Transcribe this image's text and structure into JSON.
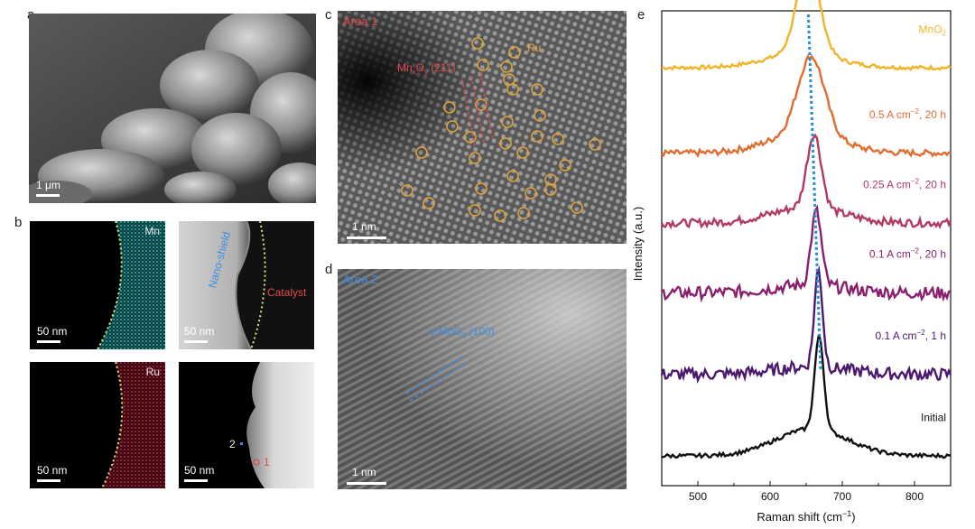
{
  "panel_labels": {
    "a": "a",
    "b": "b",
    "c": "c",
    "d": "d",
    "e": "e"
  },
  "panel_a": {
    "scale_label": "1 μm"
  },
  "panel_b": {
    "mn_label": "Mn",
    "ru_label": "Ru",
    "nano_shield_label": "Nano-shield",
    "catalyst_label": "Catalyst",
    "scale_label": "50 nm",
    "point_1": "1",
    "point_2": "2",
    "colors": {
      "mn": "#1fb7b4",
      "ru": "#d21f3c",
      "boundary": "#e8e07a"
    }
  },
  "panel_c": {
    "area_label": "Area 1",
    "plane_label_main": "Mn",
    "plane_sub_1": "x",
    "plane_label_mid": "O",
    "plane_sub_2": "y",
    "plane_label_end": " (211)",
    "ru_label": "Ru",
    "scale_label": "1 nm",
    "colors": {
      "label": "#e34a4a",
      "ru_marker": "#e3a53a"
    }
  },
  "panel_d": {
    "area_label": "Area 2",
    "plane_label_main": "γ-MnO",
    "plane_sub": "2",
    "plane_label_end": " (100)",
    "scale_label": "1 nm",
    "colors": {
      "label": "#3a8ee6"
    }
  },
  "chart_data": {
    "type": "line",
    "xlabel": "Raman shift (cm",
    "xlabel_sup": "−1",
    "xlabel_end": ")",
    "ylabel": "Intensity (a.u.)",
    "xlim": [
      450,
      850
    ],
    "xticks": [
      "500",
      "600",
      "700",
      "800"
    ],
    "xtick_values": [
      500,
      600,
      700,
      800
    ],
    "peak_guide": {
      "x_top": 653,
      "x_bottom": 670,
      "color": "#1f8fd6"
    },
    "series": [
      {
        "name": "MnO",
        "name_sub": "2",
        "name_end": "",
        "color": "#f0b429",
        "offset": 5,
        "peak_x": 653,
        "peak_height": 1.15,
        "peak_width": 22,
        "baseline": 0.0,
        "noise": 0.05,
        "shoulder_height": 0.18
      },
      {
        "name": "0.5 A cm",
        "name_sub": "−2",
        "name_end": ", 20 h",
        "color": "#e06c30",
        "offset": 3.9,
        "peak_x": 657,
        "peak_height": 1.0,
        "peak_width": 26,
        "baseline": 0.0,
        "noise": 0.08,
        "shoulder_height": 0.25
      },
      {
        "name": "0.25 A cm",
        "name_sub": "−2",
        "name_end": ", 20 h",
        "color": "#b23a5e",
        "offset": 3.0,
        "peak_x": 661,
        "peak_height": 0.95,
        "peak_width": 14,
        "baseline": 0.0,
        "noise": 0.1,
        "shoulder_height": 0.2
      },
      {
        "name": "0.1 A cm",
        "name_sub": "−2",
        "name_end": ", 20 h",
        "color": "#8a1f6e",
        "offset": 2.1,
        "peak_x": 664,
        "peak_height": 0.95,
        "peak_width": 10,
        "baseline": 0.0,
        "noise": 0.16,
        "shoulder_height": 0.1
      },
      {
        "name": "0.1 A cm",
        "name_sub": "−2",
        "name_end": ", 1 h",
        "color": "#4b1a6f",
        "offset": 1.05,
        "peak_x": 667,
        "peak_height": 1.25,
        "peak_width": 8,
        "baseline": 0.0,
        "noise": 0.16,
        "shoulder_height": 0.1
      },
      {
        "name": "Initial",
        "name_sub": "",
        "name_end": "",
        "color": "#111111",
        "offset": 0.0,
        "peak_x": 668,
        "peak_height": 1.2,
        "peak_width": 9,
        "baseline": 0.0,
        "noise": 0.05,
        "shoulder_height": 0.35
      }
    ]
  }
}
